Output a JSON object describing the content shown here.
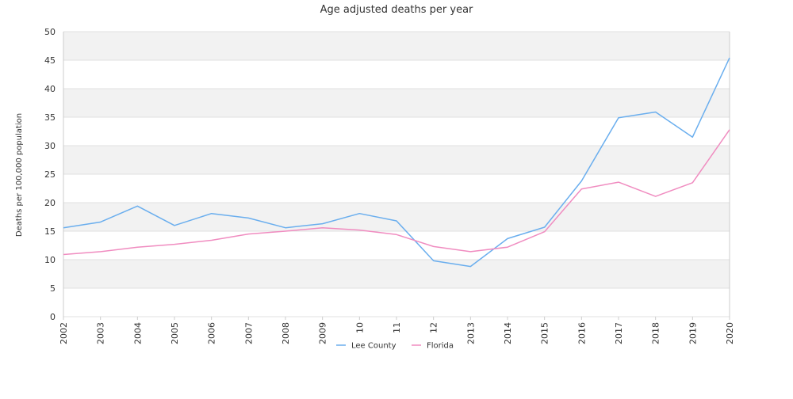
{
  "chart_data": {
    "type": "line",
    "title": "Age adjusted deaths per year",
    "xlabel": "",
    "ylabel": "Deaths per 100,000 population",
    "categories": [
      "2002",
      "2003",
      "2004",
      "2005",
      "2006",
      "2007",
      "2008",
      "2009",
      "10",
      "11",
      "12",
      "2013",
      "2014",
      "2015",
      "2016",
      "2017",
      "2018",
      "2019",
      "2020"
    ],
    "ylim": [
      0,
      50
    ],
    "yticks": [
      0,
      5,
      10,
      15,
      20,
      25,
      30,
      35,
      40,
      45,
      50
    ],
    "grid": "horizontal bands",
    "legend_position": "bottom-center",
    "series": [
      {
        "name": "Lee County",
        "color": "#6aaeee",
        "values": [
          15.6,
          16.6,
          19.4,
          16.0,
          18.1,
          17.3,
          15.6,
          16.3,
          18.1,
          16.8,
          9.8,
          8.8,
          13.7,
          15.7,
          23.8,
          34.9,
          35.9,
          31.5,
          45.4
        ]
      },
      {
        "name": "Florida",
        "color": "#f08cc0",
        "values": [
          10.9,
          11.4,
          12.2,
          12.7,
          13.4,
          14.5,
          15.0,
          15.6,
          15.2,
          14.4,
          12.3,
          11.4,
          12.2,
          14.9,
          22.4,
          23.6,
          21.1,
          23.5,
          32.8
        ]
      }
    ],
    "colors": {
      "band": "#f2f2f2",
      "gridline": "#e0e0e0",
      "axis": "#cccccc"
    }
  }
}
